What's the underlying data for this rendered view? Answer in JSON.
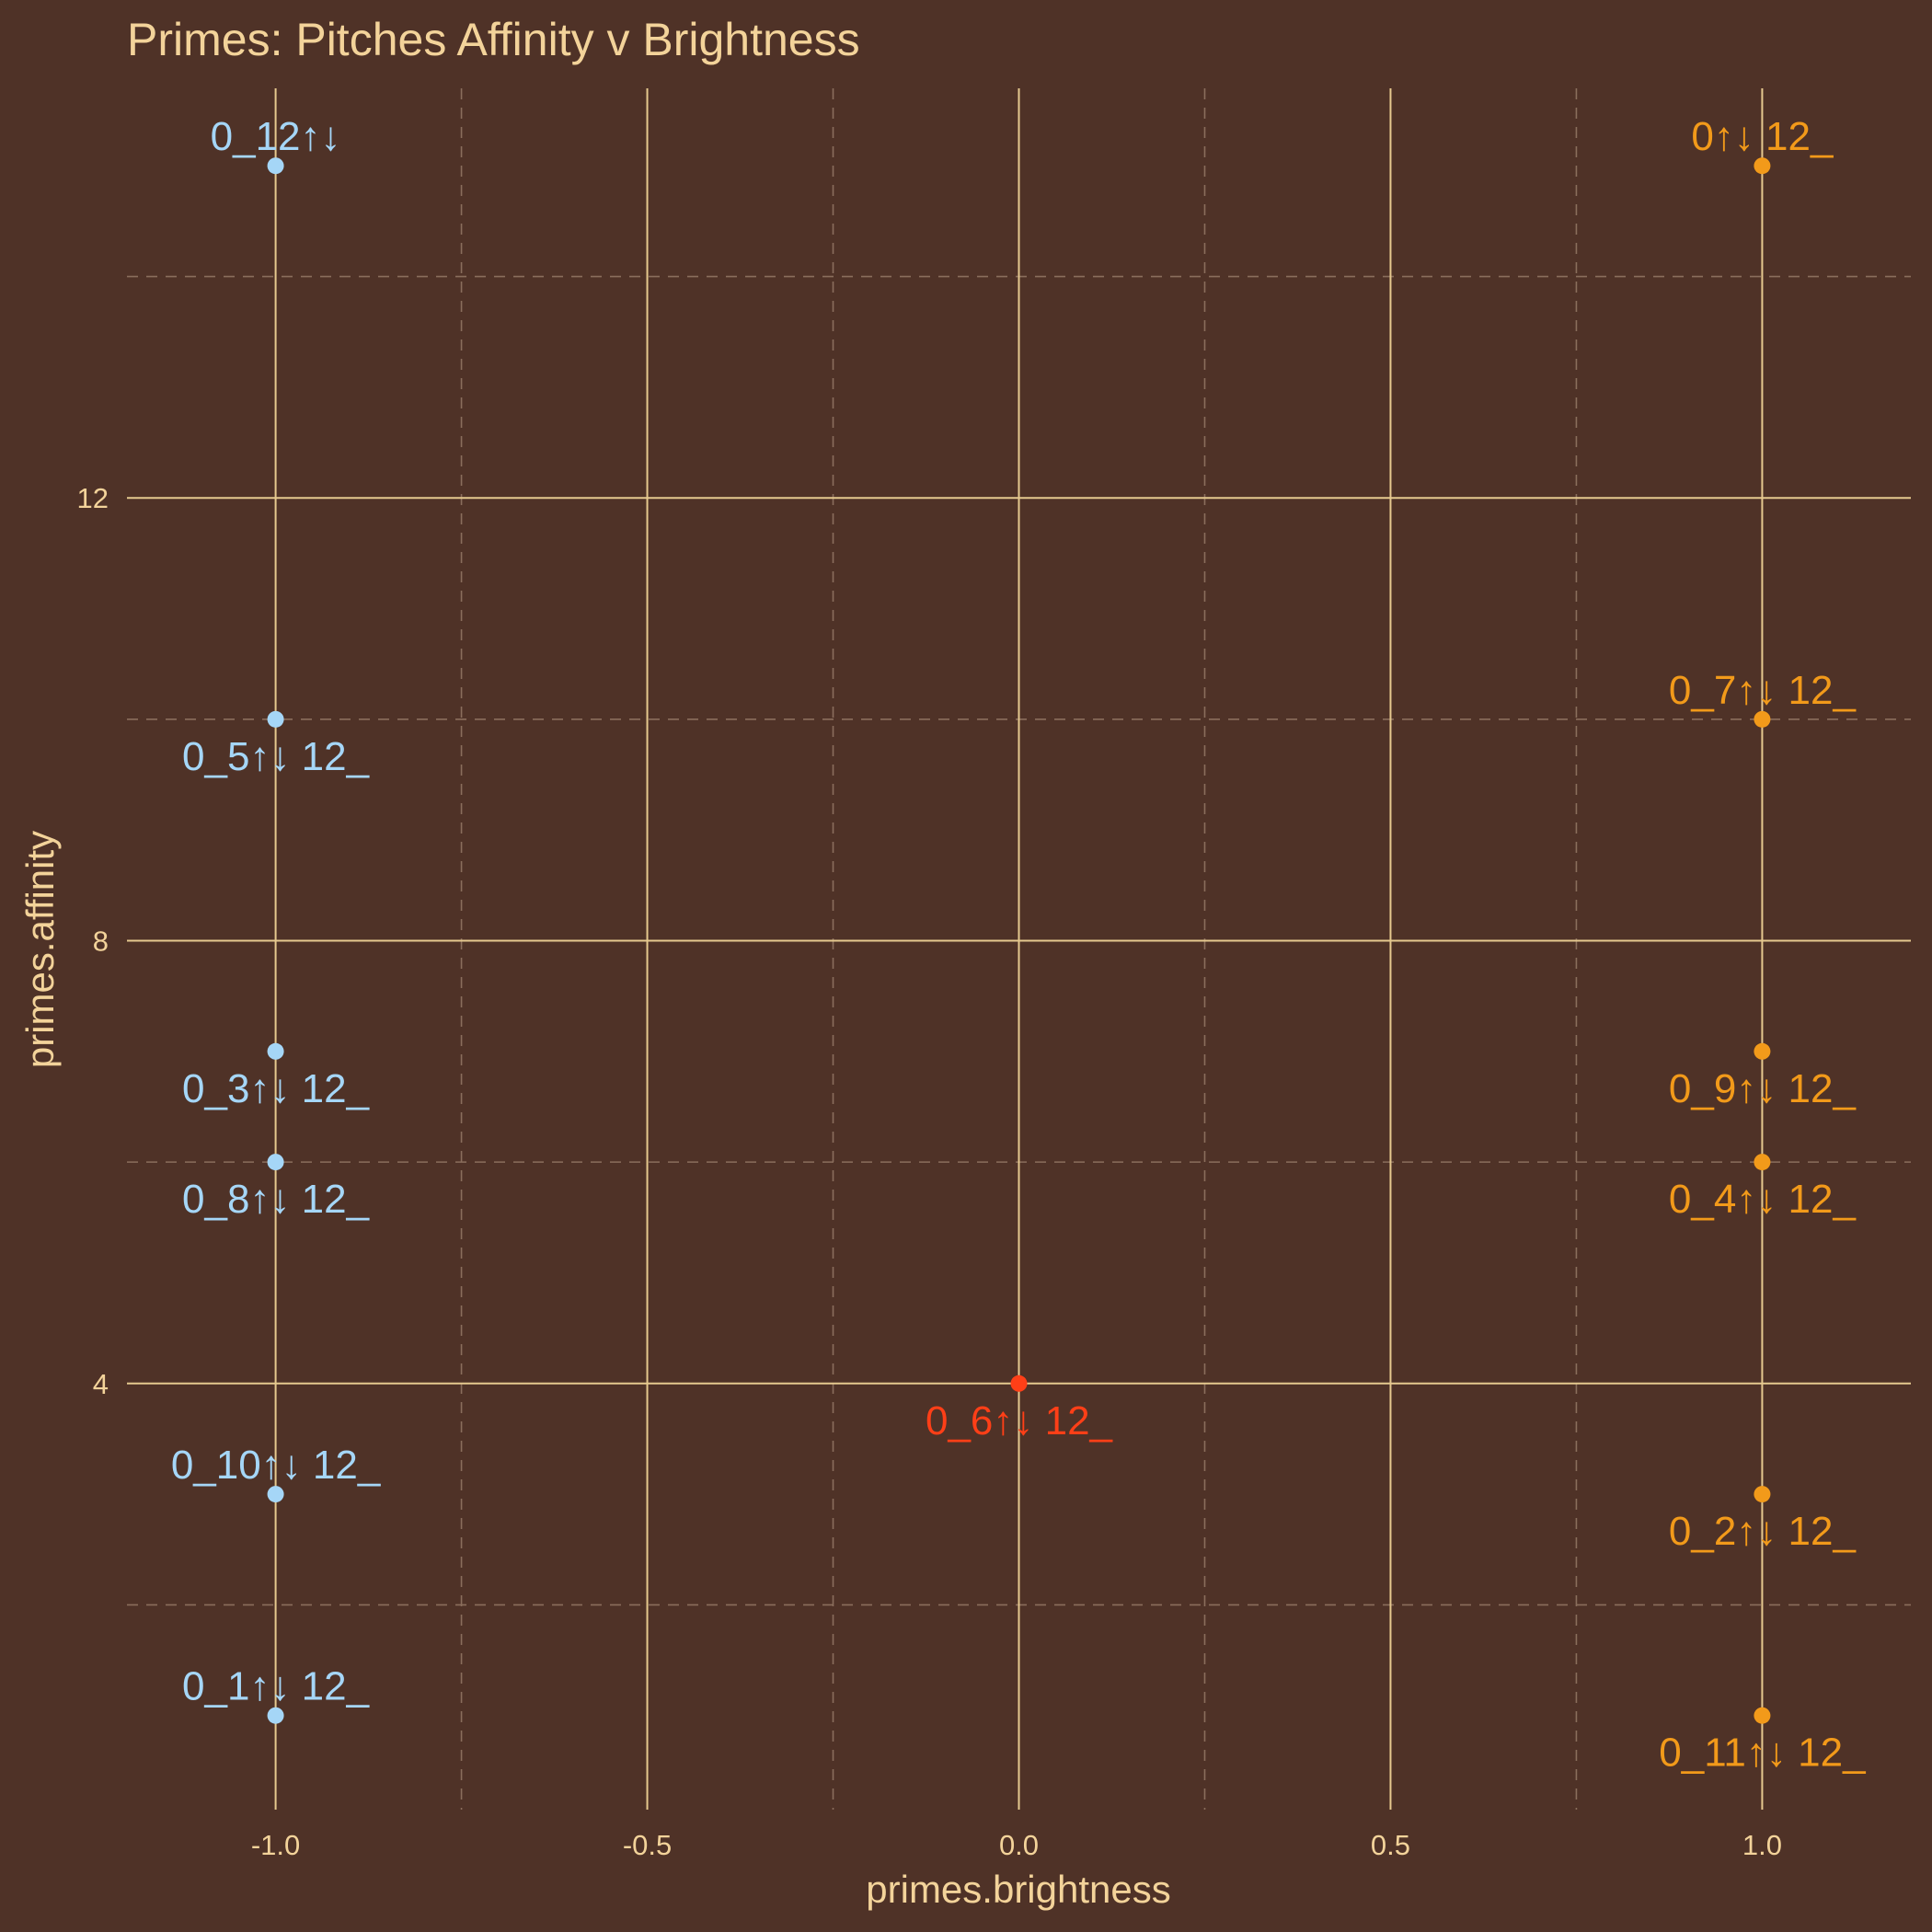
{
  "chart_data": {
    "type": "scatter",
    "title": "Primes: Pitches Affinity v Brightness",
    "xlabel": "primes.brightness",
    "ylabel": "primes.affinity",
    "xlim": [
      -1.2,
      1.2
    ],
    "ylim": [
      0.15,
      15.7
    ],
    "x_ticks": [
      -1.0,
      -0.5,
      0.0,
      0.5,
      1.0
    ],
    "x_tick_labels": [
      "-1.0",
      "-0.5",
      "0.0",
      "0.5",
      "1.0"
    ],
    "x_minor": [
      -0.75,
      -0.25,
      0.25,
      0.75
    ],
    "y_ticks": [
      4,
      8,
      12
    ],
    "y_tick_labels": [
      "4",
      "8",
      "12"
    ],
    "y_minor": [
      2,
      6,
      10,
      14
    ],
    "grid": true,
    "legend": "none",
    "colors": {
      "background": "#4f3227",
      "text": "#f3d39a",
      "grid_major": "#e6c98f",
      "grid_minor": "#8a6e5c",
      "dark": "#a5d6f7",
      "bright": "#f29a1a",
      "neutral": "#ff3f17"
    },
    "points": [
      {
        "x": -1,
        "y": 15,
        "label": "0_12↑↓",
        "group": "dark",
        "pos": "above"
      },
      {
        "x": -1,
        "y": 10,
        "label": "0_5↑↓ 12_",
        "group": "dark",
        "pos": "below"
      },
      {
        "x": -1,
        "y": 7,
        "label": "0_3↑↓ 12_",
        "group": "dark",
        "pos": "below"
      },
      {
        "x": -1,
        "y": 6,
        "label": "0_8↑↓ 12_",
        "group": "dark",
        "pos": "below"
      },
      {
        "x": -1,
        "y": 3,
        "label": "0_10↑↓ 12_",
        "group": "dark",
        "pos": "above"
      },
      {
        "x": -1,
        "y": 1,
        "label": "0_1↑↓ 12_",
        "group": "dark",
        "pos": "above"
      },
      {
        "x": 0,
        "y": 4,
        "label": "0_6↑↓ 12_",
        "group": "neutral",
        "pos": "below"
      },
      {
        "x": 1,
        "y": 15,
        "label": "0↑↓ 12_",
        "group": "bright",
        "pos": "above"
      },
      {
        "x": 1,
        "y": 10,
        "label": "0_7↑↓ 12_",
        "group": "bright",
        "pos": "above"
      },
      {
        "x": 1,
        "y": 7,
        "label": "0_9↑↓ 12_",
        "group": "bright",
        "pos": "below"
      },
      {
        "x": 1,
        "y": 6,
        "label": "0_4↑↓ 12_",
        "group": "bright",
        "pos": "below"
      },
      {
        "x": 1,
        "y": 3,
        "label": "0_2↑↓ 12_",
        "group": "bright",
        "pos": "below"
      },
      {
        "x": 1,
        "y": 1,
        "label": "0_11↑↓ 12_",
        "group": "bright",
        "pos": "below"
      }
    ]
  }
}
